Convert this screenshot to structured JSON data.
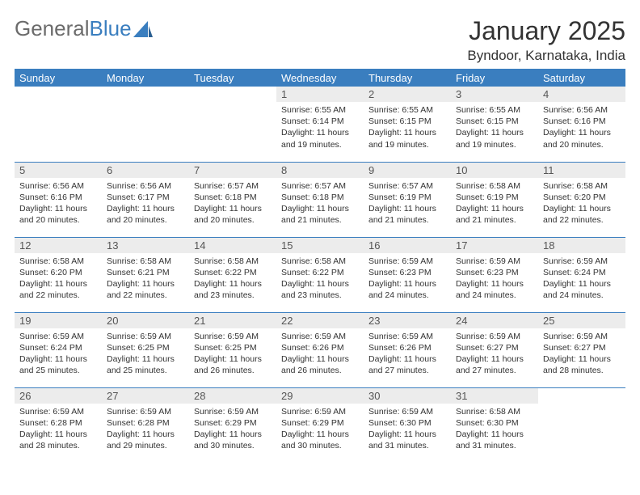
{
  "logo": {
    "text1": "General",
    "text2": "Blue"
  },
  "title": "January 2025",
  "location": "Byndoor, Karnataka, India",
  "colors": {
    "header_bg": "#3a7ebf",
    "header_text": "#ffffff",
    "daynum_bg": "#ececec",
    "daynum_text": "#555555",
    "body_text": "#333333",
    "separator": "#3a7ebf",
    "logo_gray": "#6b6b6b",
    "logo_blue": "#3a7ebf",
    "page_bg": "#ffffff"
  },
  "typography": {
    "month_title_fontsize": 32,
    "location_fontsize": 17,
    "dayheader_fontsize": 13,
    "daynum_fontsize": 13,
    "daybody_fontsize": 10.5
  },
  "day_headers": [
    "Sunday",
    "Monday",
    "Tuesday",
    "Wednesday",
    "Thursday",
    "Friday",
    "Saturday"
  ],
  "weeks": [
    [
      null,
      null,
      null,
      {
        "n": "1",
        "sr": "Sunrise: 6:55 AM",
        "ss": "Sunset: 6:14 PM",
        "dl": "Daylight: 11 hours and 19 minutes."
      },
      {
        "n": "2",
        "sr": "Sunrise: 6:55 AM",
        "ss": "Sunset: 6:15 PM",
        "dl": "Daylight: 11 hours and 19 minutes."
      },
      {
        "n": "3",
        "sr": "Sunrise: 6:55 AM",
        "ss": "Sunset: 6:15 PM",
        "dl": "Daylight: 11 hours and 19 minutes."
      },
      {
        "n": "4",
        "sr": "Sunrise: 6:56 AM",
        "ss": "Sunset: 6:16 PM",
        "dl": "Daylight: 11 hours and 20 minutes."
      }
    ],
    [
      {
        "n": "5",
        "sr": "Sunrise: 6:56 AM",
        "ss": "Sunset: 6:16 PM",
        "dl": "Daylight: 11 hours and 20 minutes."
      },
      {
        "n": "6",
        "sr": "Sunrise: 6:56 AM",
        "ss": "Sunset: 6:17 PM",
        "dl": "Daylight: 11 hours and 20 minutes."
      },
      {
        "n": "7",
        "sr": "Sunrise: 6:57 AM",
        "ss": "Sunset: 6:18 PM",
        "dl": "Daylight: 11 hours and 20 minutes."
      },
      {
        "n": "8",
        "sr": "Sunrise: 6:57 AM",
        "ss": "Sunset: 6:18 PM",
        "dl": "Daylight: 11 hours and 21 minutes."
      },
      {
        "n": "9",
        "sr": "Sunrise: 6:57 AM",
        "ss": "Sunset: 6:19 PM",
        "dl": "Daylight: 11 hours and 21 minutes."
      },
      {
        "n": "10",
        "sr": "Sunrise: 6:58 AM",
        "ss": "Sunset: 6:19 PM",
        "dl": "Daylight: 11 hours and 21 minutes."
      },
      {
        "n": "11",
        "sr": "Sunrise: 6:58 AM",
        "ss": "Sunset: 6:20 PM",
        "dl": "Daylight: 11 hours and 22 minutes."
      }
    ],
    [
      {
        "n": "12",
        "sr": "Sunrise: 6:58 AM",
        "ss": "Sunset: 6:20 PM",
        "dl": "Daylight: 11 hours and 22 minutes."
      },
      {
        "n": "13",
        "sr": "Sunrise: 6:58 AM",
        "ss": "Sunset: 6:21 PM",
        "dl": "Daylight: 11 hours and 22 minutes."
      },
      {
        "n": "14",
        "sr": "Sunrise: 6:58 AM",
        "ss": "Sunset: 6:22 PM",
        "dl": "Daylight: 11 hours and 23 minutes."
      },
      {
        "n": "15",
        "sr": "Sunrise: 6:58 AM",
        "ss": "Sunset: 6:22 PM",
        "dl": "Daylight: 11 hours and 23 minutes."
      },
      {
        "n": "16",
        "sr": "Sunrise: 6:59 AM",
        "ss": "Sunset: 6:23 PM",
        "dl": "Daylight: 11 hours and 24 minutes."
      },
      {
        "n": "17",
        "sr": "Sunrise: 6:59 AM",
        "ss": "Sunset: 6:23 PM",
        "dl": "Daylight: 11 hours and 24 minutes."
      },
      {
        "n": "18",
        "sr": "Sunrise: 6:59 AM",
        "ss": "Sunset: 6:24 PM",
        "dl": "Daylight: 11 hours and 24 minutes."
      }
    ],
    [
      {
        "n": "19",
        "sr": "Sunrise: 6:59 AM",
        "ss": "Sunset: 6:24 PM",
        "dl": "Daylight: 11 hours and 25 minutes."
      },
      {
        "n": "20",
        "sr": "Sunrise: 6:59 AM",
        "ss": "Sunset: 6:25 PM",
        "dl": "Daylight: 11 hours and 25 minutes."
      },
      {
        "n": "21",
        "sr": "Sunrise: 6:59 AM",
        "ss": "Sunset: 6:25 PM",
        "dl": "Daylight: 11 hours and 26 minutes."
      },
      {
        "n": "22",
        "sr": "Sunrise: 6:59 AM",
        "ss": "Sunset: 6:26 PM",
        "dl": "Daylight: 11 hours and 26 minutes."
      },
      {
        "n": "23",
        "sr": "Sunrise: 6:59 AM",
        "ss": "Sunset: 6:26 PM",
        "dl": "Daylight: 11 hours and 27 minutes."
      },
      {
        "n": "24",
        "sr": "Sunrise: 6:59 AM",
        "ss": "Sunset: 6:27 PM",
        "dl": "Daylight: 11 hours and 27 minutes."
      },
      {
        "n": "25",
        "sr": "Sunrise: 6:59 AM",
        "ss": "Sunset: 6:27 PM",
        "dl": "Daylight: 11 hours and 28 minutes."
      }
    ],
    [
      {
        "n": "26",
        "sr": "Sunrise: 6:59 AM",
        "ss": "Sunset: 6:28 PM",
        "dl": "Daylight: 11 hours and 28 minutes."
      },
      {
        "n": "27",
        "sr": "Sunrise: 6:59 AM",
        "ss": "Sunset: 6:28 PM",
        "dl": "Daylight: 11 hours and 29 minutes."
      },
      {
        "n": "28",
        "sr": "Sunrise: 6:59 AM",
        "ss": "Sunset: 6:29 PM",
        "dl": "Daylight: 11 hours and 30 minutes."
      },
      {
        "n": "29",
        "sr": "Sunrise: 6:59 AM",
        "ss": "Sunset: 6:29 PM",
        "dl": "Daylight: 11 hours and 30 minutes."
      },
      {
        "n": "30",
        "sr": "Sunrise: 6:59 AM",
        "ss": "Sunset: 6:30 PM",
        "dl": "Daylight: 11 hours and 31 minutes."
      },
      {
        "n": "31",
        "sr": "Sunrise: 6:58 AM",
        "ss": "Sunset: 6:30 PM",
        "dl": "Daylight: 11 hours and 31 minutes."
      },
      null
    ]
  ]
}
